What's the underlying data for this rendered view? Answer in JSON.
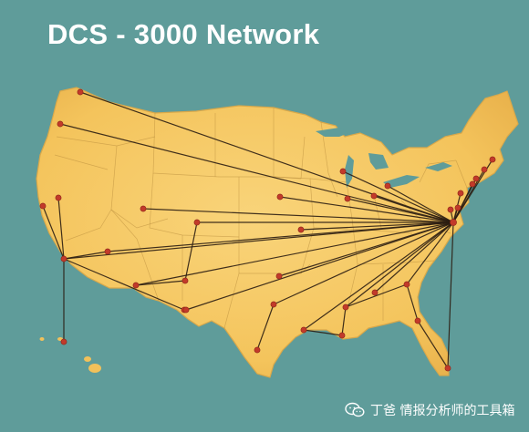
{
  "title": "DCS - 3000 Network",
  "watermark": "丁爸 情报分析师的工具箱",
  "colors": {
    "ocean": "#5f9c9a",
    "land": "#f6c760",
    "land_edge": "#d9a84a",
    "state_line": "#b88d3c",
    "link": "#2b1d12",
    "node": "#c23a2a",
    "title": "#ffffff"
  },
  "icons": {
    "watermark": "wechat-icon"
  },
  "hub": "washington-dc",
  "nodes": [
    {
      "id": "seattle",
      "hub": false
    },
    {
      "id": "portland",
      "hub": false
    },
    {
      "id": "san-francisco",
      "hub": false
    },
    {
      "id": "san-jose",
      "hub": false
    },
    {
      "id": "los-angeles",
      "hub": false
    },
    {
      "id": "las-vegas",
      "hub": false
    },
    {
      "id": "hawaii",
      "hub": false
    },
    {
      "id": "salt-lake-city",
      "hub": false
    },
    {
      "id": "denver",
      "hub": false
    },
    {
      "id": "albuquerque",
      "hub": false
    },
    {
      "id": "phoenix",
      "hub": false
    },
    {
      "id": "tucson",
      "hub": false
    },
    {
      "id": "el-paso",
      "hub": false
    },
    {
      "id": "oklahoma-city",
      "hub": false
    },
    {
      "id": "dallas",
      "hub": false
    },
    {
      "id": "san-antonio",
      "hub": false
    },
    {
      "id": "houston",
      "hub": false
    },
    {
      "id": "kansas-city",
      "hub": false
    },
    {
      "id": "new-orleans",
      "hub": false
    },
    {
      "id": "jackson",
      "hub": false
    },
    {
      "id": "memphis",
      "hub": false
    },
    {
      "id": "atlanta",
      "hub": false
    },
    {
      "id": "jacksonville",
      "hub": false
    },
    {
      "id": "miami",
      "hub": false
    },
    {
      "id": "chicago",
      "hub": false
    },
    {
      "id": "minneapolis",
      "hub": false
    },
    {
      "id": "detroit",
      "hub": false
    },
    {
      "id": "cleveland",
      "hub": false
    },
    {
      "id": "pittsburgh",
      "hub": false
    },
    {
      "id": "philadelphia",
      "hub": false
    },
    {
      "id": "new-york",
      "hub": false
    },
    {
      "id": "new-jersey",
      "hub": false
    },
    {
      "id": "hartford",
      "hub": false
    },
    {
      "id": "boston",
      "hub": false
    },
    {
      "id": "providence",
      "hub": false
    },
    {
      "id": "baltimore",
      "hub": false
    },
    {
      "id": "washington-dc",
      "hub": true
    }
  ],
  "links": [
    [
      "washington-dc",
      "seattle"
    ],
    [
      "washington-dc",
      "portland"
    ],
    [
      "washington-dc",
      "los-angeles"
    ],
    [
      "washington-dc",
      "salt-lake-city"
    ],
    [
      "washington-dc",
      "denver"
    ],
    [
      "washington-dc",
      "las-vegas"
    ],
    [
      "washington-dc",
      "kansas-city"
    ],
    [
      "washington-dc",
      "phoenix"
    ],
    [
      "washington-dc",
      "el-paso"
    ],
    [
      "washington-dc",
      "oklahoma-city"
    ],
    [
      "washington-dc",
      "dallas"
    ],
    [
      "washington-dc",
      "houston"
    ],
    [
      "washington-dc",
      "jackson"
    ],
    [
      "washington-dc",
      "memphis"
    ],
    [
      "washington-dc",
      "atlanta"
    ],
    [
      "washington-dc",
      "miami"
    ],
    [
      "washington-dc",
      "chicago"
    ],
    [
      "washington-dc",
      "minneapolis"
    ],
    [
      "washington-dc",
      "detroit"
    ],
    [
      "washington-dc",
      "cleveland"
    ],
    [
      "washington-dc",
      "pittsburgh"
    ],
    [
      "washington-dc",
      "philadelphia"
    ],
    [
      "washington-dc",
      "new-york"
    ],
    [
      "washington-dc",
      "new-jersey"
    ],
    [
      "washington-dc",
      "hartford"
    ],
    [
      "washington-dc",
      "boston"
    ],
    [
      "washington-dc",
      "providence"
    ],
    [
      "washington-dc",
      "baltimore"
    ],
    [
      "los-angeles",
      "san-francisco"
    ],
    [
      "los-angeles",
      "san-jose"
    ],
    [
      "los-angeles",
      "hawaii"
    ],
    [
      "los-angeles",
      "tucson"
    ],
    [
      "los-angeles",
      "las-vegas"
    ],
    [
      "denver",
      "albuquerque"
    ],
    [
      "albuquerque",
      "phoenix"
    ],
    [
      "tucson",
      "el-paso"
    ],
    [
      "dallas",
      "san-antonio"
    ],
    [
      "houston",
      "new-orleans"
    ],
    [
      "new-orleans",
      "jackson"
    ],
    [
      "jackson",
      "atlanta"
    ],
    [
      "atlanta",
      "jacksonville"
    ],
    [
      "jacksonville",
      "miami"
    ]
  ]
}
